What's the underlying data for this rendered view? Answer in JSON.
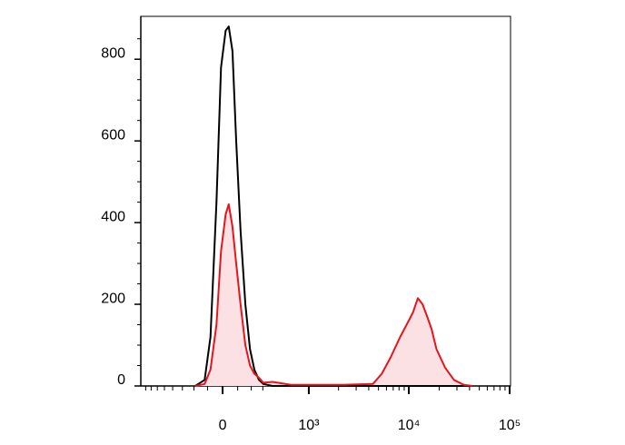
{
  "chart_data": {
    "type": "histogram-overlay",
    "x": [
      -190,
      -120,
      -80,
      -40,
      -10,
      20,
      40,
      65,
      90,
      120,
      155,
      190,
      225,
      265,
      305,
      400,
      650,
      1250,
      2300,
      4400,
      5400,
      6600,
      8200,
      10000,
      11000,
      12300,
      13700,
      15200,
      16800,
      18800,
      22900,
      28000,
      35000,
      43000
    ],
    "series": [
      {
        "color": "#000000",
        "values": [
          0,
          15,
          120,
          450,
          780,
          870,
          880,
          820,
          600,
          380,
          200,
          90,
          40,
          15,
          5,
          0,
          0,
          0,
          0,
          0,
          0,
          0,
          0,
          0,
          0,
          0,
          0,
          0,
          0,
          0,
          0,
          0,
          0,
          0
        ]
      },
      {
        "color": "#e8141c",
        "fill": "#fbe1e4",
        "values": [
          0,
          5,
          40,
          150,
          330,
          420,
          445,
          390,
          300,
          200,
          100,
          50,
          30,
          20,
          8,
          10,
          3,
          3,
          3,
          5,
          30,
          70,
          120,
          160,
          180,
          215,
          200,
          170,
          140,
          90,
          45,
          15,
          3,
          0
        ]
      }
    ],
    "xscale": "biexponential",
    "xlim": [
      -900,
      102000
    ],
    "xticks": [
      {
        "value": 0,
        "label": "0"
      },
      {
        "value": 1000,
        "label": "10³"
      },
      {
        "value": 10000,
        "label": "10⁴"
      },
      {
        "value": 100000,
        "label": "10⁵"
      }
    ],
    "xminor_ticks": [
      -800,
      -700,
      -600,
      -500,
      -400,
      -300,
      -200,
      -100,
      100,
      200,
      300,
      2000,
      3000,
      4000,
      5000,
      6000,
      7000,
      8000,
      9000,
      20000,
      30000,
      40000,
      50000,
      60000,
      70000,
      80000,
      90000
    ],
    "ylim": [
      0,
      905
    ],
    "yticks": [
      0,
      200,
      400,
      600,
      800
    ],
    "yminor_ticks": [
      50,
      100,
      150,
      250,
      300,
      350,
      450,
      500,
      550,
      650,
      700,
      750,
      850
    ]
  }
}
